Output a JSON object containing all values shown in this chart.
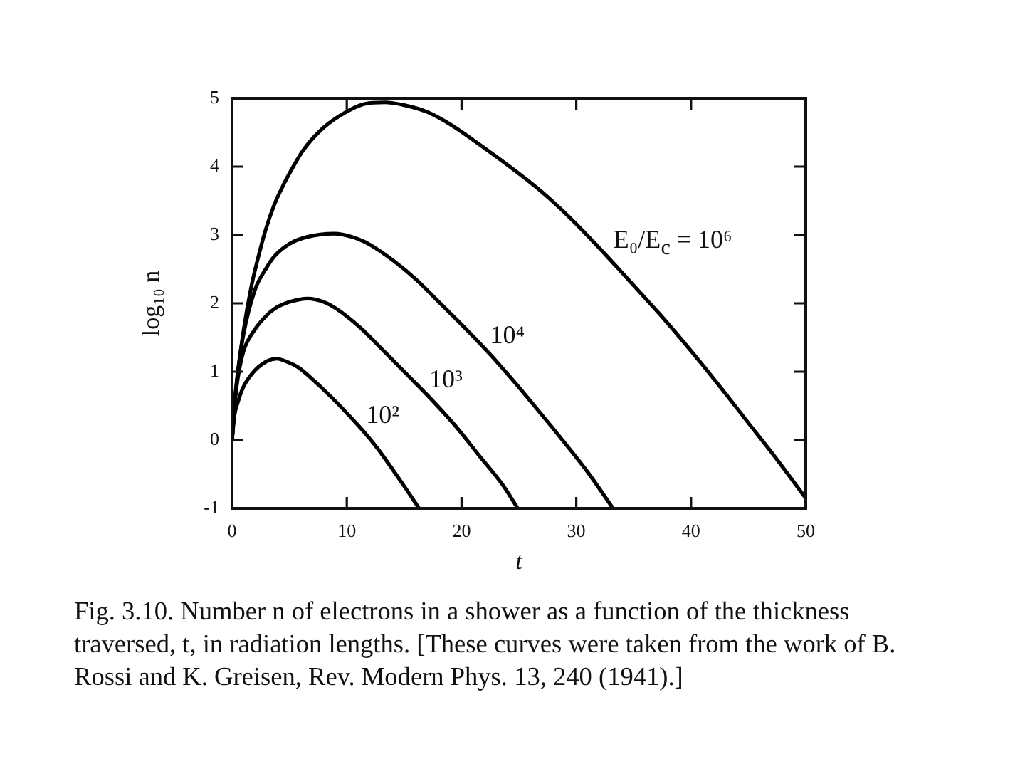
{
  "chart_data": {
    "type": "line",
    "xlabel": "t",
    "ylabel": "log₁₀ n",
    "xlim": [
      0,
      50
    ],
    "xticks": [
      0,
      10,
      20,
      30,
      40,
      50
    ],
    "ylim": [
      -1,
      5
    ],
    "yticks": [
      -1,
      0,
      1,
      2,
      3,
      4,
      5
    ],
    "series": [
      {
        "name": "E₀/E$_{c}$ = 10⁶",
        "color": "#000000",
        "x": [
          0,
          0.3,
          0.6,
          1,
          1.66,
          2.2,
          2.9,
          3.7,
          4.56,
          5.4,
          6.2,
          7.9,
          9.94,
          11.6,
          13.3,
          15,
          17,
          19,
          21.1,
          23,
          25.3,
          27,
          29.4,
          31.5,
          33.6,
          35.6,
          37.7,
          41,
          43,
          45,
          47.2,
          50
        ],
        "values": [
          0,
          0.65,
          1.1,
          1.6,
          2.23,
          2.62,
          3.06,
          3.45,
          3.76,
          4.02,
          4.24,
          4.56,
          4.8,
          4.92,
          4.94,
          4.9,
          4.8,
          4.62,
          4.38,
          4.15,
          3.86,
          3.63,
          3.26,
          2.9,
          2.52,
          2.15,
          1.76,
          1.1,
          0.68,
          0.25,
          -0.22,
          -0.85
        ]
      },
      {
        "name": "10⁴",
        "color": "#000000",
        "x": [
          0,
          0.2,
          0.5,
          1,
          2,
          3,
          3.7,
          5,
          6.5,
          8.9,
          10.5,
          12,
          14.1,
          16.1,
          18.2,
          20.3,
          22.4,
          24.4,
          26.5,
          28.6,
          31,
          33.2
        ],
        "values": [
          0,
          0.5,
          1.0,
          1.55,
          2.2,
          2.52,
          2.69,
          2.87,
          2.97,
          3.02,
          2.97,
          2.86,
          2.62,
          2.34,
          1.99,
          1.64,
          1.27,
          0.89,
          0.47,
          0.04,
          -0.47,
          -1
        ]
      },
      {
        "name": "10³",
        "color": "#000000",
        "x": [
          0,
          0.2,
          0.5,
          1,
          2,
          3,
          3.7,
          5,
          6.6,
          8,
          9.1,
          11.2,
          13.3,
          15.3,
          17,
          19.5,
          21.5,
          23.6,
          24.9
        ],
        "values": [
          0,
          0.5,
          0.9,
          1.3,
          1.62,
          1.82,
          1.92,
          2.02,
          2.07,
          2.02,
          1.92,
          1.64,
          1.29,
          0.95,
          0.66,
          0.2,
          -0.22,
          -0.66,
          -1
        ]
      },
      {
        "name": "10²",
        "color": "#000000",
        "x": [
          0,
          0.2,
          0.5,
          1,
          2,
          3,
          3.9,
          4.56,
          5.8,
          6.6,
          8.7,
          10.8,
          12,
          12.8,
          14.9,
          16.3
        ],
        "values": [
          0,
          0.35,
          0.55,
          0.78,
          1.02,
          1.15,
          1.19,
          1.16,
          1.06,
          0.95,
          0.62,
          0.25,
          0.02,
          -0.15,
          -0.65,
          -1
        ]
      }
    ],
    "annotations": [
      "Fig. 3.10. Number n of electrons in a shower as a function of the thickness traversed, t, in radiation lengths. [These curves were taken from the work of B. Rossi and K. Greisen, Rev. Modern Phys. 13, 240 (1941).]"
    ]
  }
}
